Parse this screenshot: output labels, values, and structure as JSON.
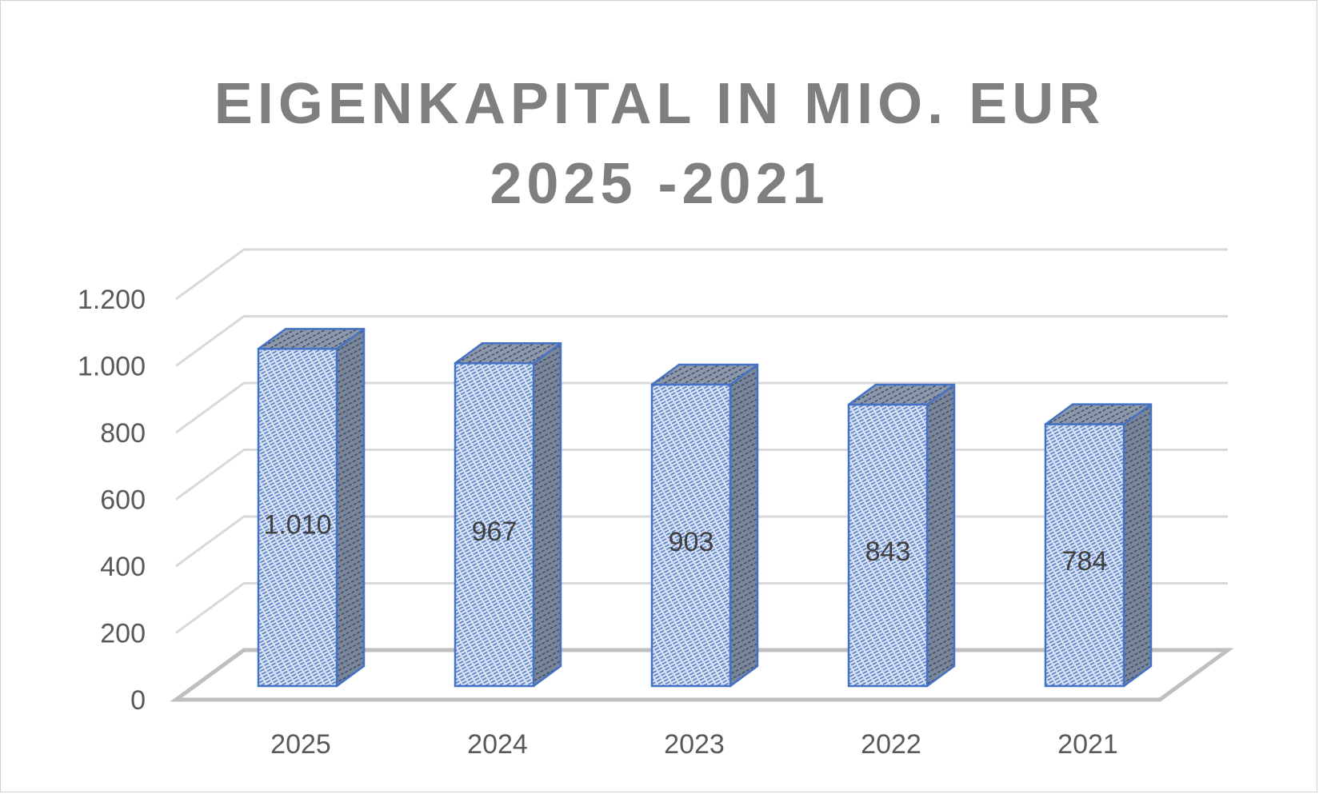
{
  "chart_data": {
    "type": "bar",
    "title_lines": [
      "EIGENKAPITAL IN MIO. EUR",
      "2025 -2021"
    ],
    "categories": [
      "2025",
      "2024",
      "2023",
      "2022",
      "2021"
    ],
    "values": [
      1010,
      967,
      903,
      843,
      784
    ],
    "data_labels": [
      "1.010",
      "967",
      "903",
      "843",
      "784"
    ],
    "y_ticks": [
      0,
      200,
      400,
      600,
      800,
      1000,
      1200
    ],
    "y_tick_labels": [
      "0",
      "200",
      "400",
      "600",
      "800",
      "1.000",
      "1.200"
    ],
    "ylim": [
      0,
      1200
    ],
    "xlabel": "",
    "ylabel": "",
    "grid": true,
    "legend": "none",
    "three_d": true,
    "colors": {
      "bar_front": "#dae3f3",
      "bar_hatch": "#4472c4",
      "bar_side": "#7a8699",
      "bar_outline": "#4472c4",
      "grid": "#d9d9d9",
      "floor": "#bfbfbf",
      "title": "#7f7f7f",
      "tick_text": "#595959"
    }
  }
}
